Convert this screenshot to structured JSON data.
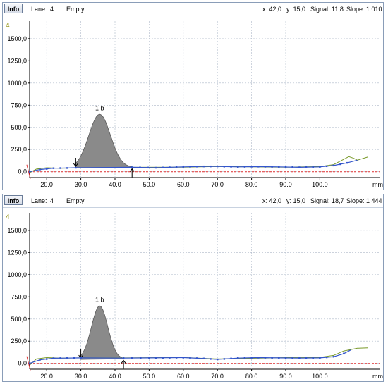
{
  "panels": [
    {
      "info_label": "Info",
      "lane_label": "Lane:",
      "lane_value": "4",
      "status": "Empty",
      "x_readout": "x: 42,0",
      "y_readout": "y: 15,0",
      "signal_readout": "Signal:  11,8",
      "slope_readout": "Slope:  1 010",
      "lane_badge": "4",
      "peak_label": "1 b",
      "colors": {
        "trace": "#3355cc",
        "raw": "#7a9a2a",
        "peak_fill": "#8a8a8a",
        "zero_line": "#e03030",
        "badge": "#8a8a00"
      },
      "chart_data": {
        "type": "area",
        "xlabel": "mm",
        "xlim": [
          15,
          115
        ],
        "ylim": [
          -50,
          1650
        ],
        "x_ticks": [
          20,
          30,
          40,
          50,
          60,
          70,
          80,
          90,
          100
        ],
        "x_tick_labels": [
          "20.0",
          "30.0",
          "40.0",
          "50.0",
          "60.0",
          "70.0",
          "80.0",
          "90.0",
          "100.0"
        ],
        "y_ticks": [
          0,
          250,
          500,
          750,
          1000,
          1250,
          1500
        ],
        "y_tick_labels": [
          "0,0",
          "250,0",
          "500,0",
          "750,0",
          "1000,0",
          "1250,0",
          "1500,0"
        ],
        "peak": {
          "name": "1 b",
          "start": 28.5,
          "apex": 35.5,
          "end": 45,
          "height": 600
        },
        "trace": [
          [
            15,
            0
          ],
          [
            18,
            25
          ],
          [
            22,
            40
          ],
          [
            26,
            42
          ],
          [
            28.5,
            45
          ],
          [
            45,
            50
          ],
          [
            52,
            45
          ],
          [
            60,
            55
          ],
          [
            66,
            60
          ],
          [
            70,
            60
          ],
          [
            76,
            55
          ],
          [
            82,
            58
          ],
          [
            88,
            55
          ],
          [
            94,
            50
          ],
          [
            100,
            55
          ],
          [
            104,
            70
          ],
          [
            108,
            100
          ],
          [
            111,
            130
          ]
        ],
        "raw": [
          [
            15,
            -10
          ],
          [
            17,
            30
          ],
          [
            20,
            45
          ],
          [
            24,
            40
          ],
          [
            28,
            42
          ],
          [
            45,
            50
          ],
          [
            60,
            52
          ],
          [
            70,
            60
          ],
          [
            90,
            52
          ],
          [
            100,
            58
          ],
          [
            104,
            80
          ],
          [
            107,
            140
          ],
          [
            108.5,
            170
          ],
          [
            110,
            150
          ],
          [
            111,
            130
          ],
          [
            114,
            165
          ]
        ]
      }
    },
    {
      "info_label": "Info",
      "lane_label": "Lane:",
      "lane_value": "4",
      "status": "Empty",
      "x_readout": "x: 42,0",
      "y_readout": "y: 15,0",
      "signal_readout": "Signal:  18,7",
      "slope_readout": "Slope:  1 444",
      "lane_badge": "4",
      "peak_label": "1 b",
      "colors": {
        "trace": "#3355cc",
        "raw": "#7a9a2a",
        "peak_fill": "#8a8a8a",
        "zero_line": "#e03030",
        "badge": "#8a8a00"
      },
      "chart_data": {
        "type": "area",
        "xlabel": "mm",
        "xlim": [
          15,
          115
        ],
        "ylim": [
          -50,
          1650
        ],
        "x_ticks": [
          20,
          30,
          40,
          50,
          60,
          70,
          80,
          90,
          100
        ],
        "x_tick_labels": [
          "20.0",
          "30.0",
          "40.0",
          "50.0",
          "60.0",
          "70.0",
          "80.0",
          "90.0",
          "100.0"
        ],
        "y_ticks": [
          0,
          250,
          500,
          750,
          1000,
          1250,
          1500
        ],
        "y_tick_labels": [
          "0,0",
          "250,0",
          "500,0",
          "750,0",
          "1000,0",
          "1250,0",
          "1500,0"
        ],
        "peak": {
          "name": "1 b",
          "start": 30,
          "apex": 35.5,
          "end": 42.5,
          "height": 600
        },
        "trace": [
          [
            15,
            0
          ],
          [
            18,
            40
          ],
          [
            22,
            58
          ],
          [
            26,
            60
          ],
          [
            30,
            62
          ],
          [
            42.5,
            60
          ],
          [
            50,
            62
          ],
          [
            60,
            65
          ],
          [
            66,
            55
          ],
          [
            70,
            45
          ],
          [
            76,
            60
          ],
          [
            82,
            65
          ],
          [
            88,
            62
          ],
          [
            94,
            60
          ],
          [
            100,
            62
          ],
          [
            104,
            75
          ],
          [
            107,
            110
          ],
          [
            109,
            150
          ]
        ],
        "raw": [
          [
            15,
            -20
          ],
          [
            17,
            50
          ],
          [
            20,
            65
          ],
          [
            24,
            60
          ],
          [
            30,
            62
          ],
          [
            42.5,
            62
          ],
          [
            60,
            66
          ],
          [
            70,
            50
          ],
          [
            90,
            65
          ],
          [
            100,
            68
          ],
          [
            104,
            90
          ],
          [
            107,
            140
          ],
          [
            109,
            155
          ],
          [
            111,
            170
          ],
          [
            114,
            175
          ]
        ]
      }
    }
  ]
}
